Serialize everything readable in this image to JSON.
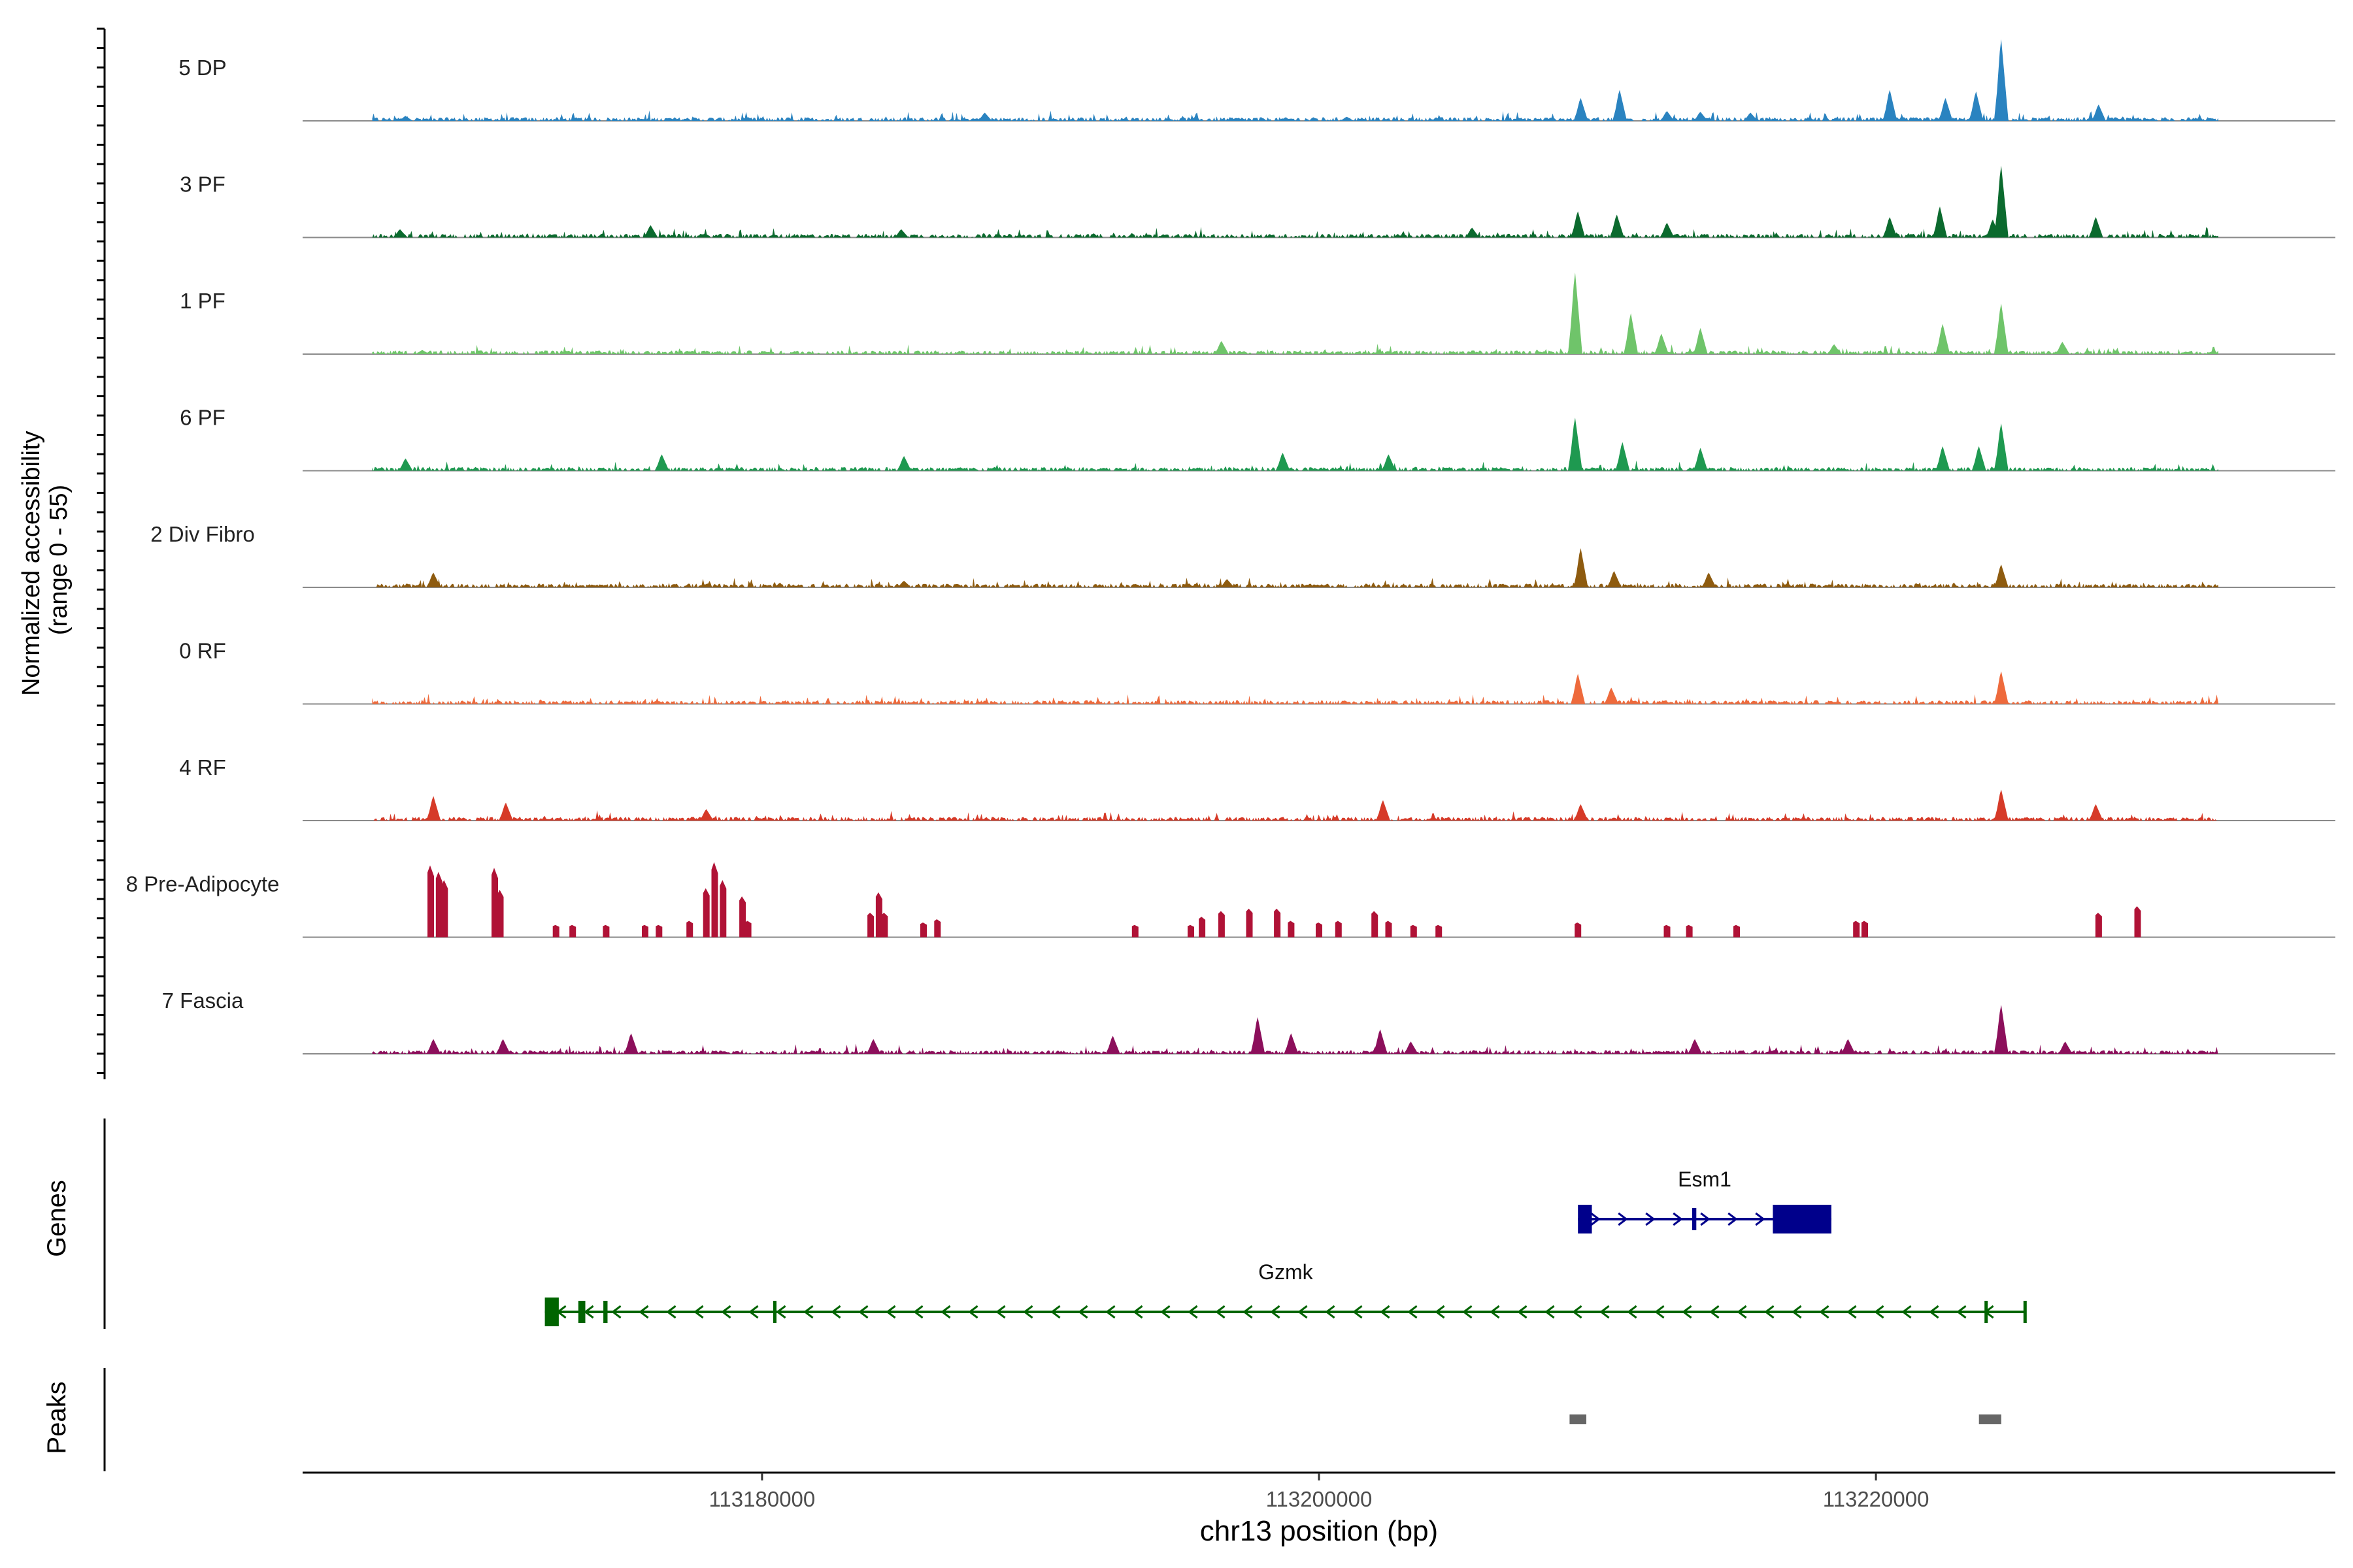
{
  "chart_data": {
    "type": "area",
    "title": "",
    "ylabel_line1": "Normalized accessibility",
    "ylabel_line2": "(range 0 - 55)",
    "xlabel": "chr13 position (bp)",
    "xlim": [
      113163500,
      113236500
    ],
    "ylim": [
      0,
      55
    ],
    "xticks": [
      113180000,
      113200000,
      113220000
    ],
    "xtick_labels": [
      "113180000",
      "113200000",
      "113220000"
    ],
    "tracks": [
      {
        "name": "5 DP",
        "color": "#2a83c0",
        "style": "dense",
        "peaks": [
          [
            113167200,
            0.06
          ],
          [
            113188000,
            0.1
          ],
          [
            113201000,
            0.05
          ],
          [
            113209400,
            0.28
          ],
          [
            113210800,
            0.38
          ],
          [
            113212500,
            0.12
          ],
          [
            113213700,
            0.11
          ],
          [
            113215500,
            0.1
          ],
          [
            113220500,
            0.38
          ],
          [
            113222500,
            0.28
          ],
          [
            113223600,
            0.36
          ],
          [
            113224500,
            1.0
          ],
          [
            113228000,
            0.2
          ]
        ]
      },
      {
        "name": "3 PF",
        "color": "#0b6a2e",
        "style": "dense",
        "peaks": [
          [
            113167000,
            0.1
          ],
          [
            113176000,
            0.15
          ],
          [
            113185000,
            0.1
          ],
          [
            113205500,
            0.12
          ],
          [
            113209300,
            0.32
          ],
          [
            113210700,
            0.28
          ],
          [
            113212500,
            0.18
          ],
          [
            113220500,
            0.25
          ],
          [
            113222300,
            0.38
          ],
          [
            113224200,
            0.22
          ],
          [
            113224500,
            0.88
          ],
          [
            113227900,
            0.25
          ]
        ]
      },
      {
        "name": "1 PF",
        "color": "#6fc46a",
        "style": "dense",
        "peaks": [
          [
            113167800,
            0.05
          ],
          [
            113177500,
            0.04
          ],
          [
            113196500,
            0.16
          ],
          [
            113209200,
            1.0
          ],
          [
            113211200,
            0.5
          ],
          [
            113212300,
            0.25
          ],
          [
            113213700,
            0.32
          ],
          [
            113218500,
            0.12
          ],
          [
            113222400,
            0.37
          ],
          [
            113224500,
            0.62
          ],
          [
            113226700,
            0.15
          ]
        ]
      },
      {
        "name": "6 PF",
        "color": "#1e9950",
        "style": "dense",
        "peaks": [
          [
            113167200,
            0.15
          ],
          [
            113176400,
            0.2
          ],
          [
            113185100,
            0.18
          ],
          [
            113198700,
            0.22
          ],
          [
            113202500,
            0.2
          ],
          [
            113209200,
            0.65
          ],
          [
            113210900,
            0.35
          ],
          [
            113213700,
            0.28
          ],
          [
            113222400,
            0.3
          ],
          [
            113223700,
            0.3
          ],
          [
            113224500,
            0.58
          ]
        ]
      },
      {
        "name": "2 Div Fibro",
        "color": "#8e5b0f",
        "style": "dense",
        "peaks": [
          [
            113168200,
            0.18
          ],
          [
            113185100,
            0.08
          ],
          [
            113196700,
            0.1
          ],
          [
            113209400,
            0.48
          ],
          [
            113210600,
            0.2
          ],
          [
            113214000,
            0.18
          ],
          [
            113224500,
            0.28
          ]
        ]
      },
      {
        "name": "0 RF",
        "color": "#ee6a3c",
        "style": "dense",
        "peaks": [
          [
            113209300,
            0.37
          ],
          [
            113210500,
            0.2
          ],
          [
            113224500,
            0.4
          ]
        ]
      },
      {
        "name": "4 RF",
        "color": "#d63a28",
        "style": "dense",
        "peaks": [
          [
            113168200,
            0.3
          ],
          [
            113170800,
            0.22
          ],
          [
            113178000,
            0.14
          ],
          [
            113202300,
            0.25
          ],
          [
            113209400,
            0.2
          ],
          [
            113224500,
            0.38
          ],
          [
            113227900,
            0.2
          ]
        ]
      },
      {
        "name": "8 Pre-Adipocyte",
        "color": "#b01236",
        "style": "sparse",
        "peaks": [
          [
            113168100,
            0.88
          ],
          [
            113168400,
            0.8
          ],
          [
            113168600,
            0.7
          ],
          [
            113170400,
            0.85
          ],
          [
            113170600,
            0.58
          ],
          [
            113172600,
            0.15
          ],
          [
            113173200,
            0.15
          ],
          [
            113174400,
            0.15
          ],
          [
            113175800,
            0.15
          ],
          [
            113176300,
            0.15
          ],
          [
            113177400,
            0.2
          ],
          [
            113178000,
            0.6
          ],
          [
            113178300,
            0.92
          ],
          [
            113178600,
            0.7
          ],
          [
            113179300,
            0.5
          ],
          [
            113179500,
            0.2
          ],
          [
            113183900,
            0.3
          ],
          [
            113184200,
            0.55
          ],
          [
            113184400,
            0.3
          ],
          [
            113185800,
            0.18
          ],
          [
            113186300,
            0.22
          ],
          [
            113193400,
            0.15
          ],
          [
            113195400,
            0.15
          ],
          [
            113195800,
            0.25
          ],
          [
            113196500,
            0.32
          ],
          [
            113197500,
            0.35
          ],
          [
            113198500,
            0.35
          ],
          [
            113199000,
            0.2
          ],
          [
            113200000,
            0.18
          ],
          [
            113200700,
            0.2
          ],
          [
            113202000,
            0.32
          ],
          [
            113202500,
            0.2
          ],
          [
            113203400,
            0.15
          ],
          [
            113204300,
            0.15
          ],
          [
            113209300,
            0.18
          ],
          [
            113212500,
            0.15
          ],
          [
            113213300,
            0.15
          ],
          [
            113215000,
            0.15
          ],
          [
            113219300,
            0.2
          ],
          [
            113219600,
            0.2
          ],
          [
            113228000,
            0.3
          ],
          [
            113229400,
            0.38
          ]
        ]
      },
      {
        "name": "7 Fascia",
        "color": "#8c0f5b",
        "style": "dense",
        "peaks": [
          [
            113168200,
            0.18
          ],
          [
            113170700,
            0.18
          ],
          [
            113175300,
            0.25
          ],
          [
            113184000,
            0.18
          ],
          [
            113192600,
            0.22
          ],
          [
            113197800,
            0.45
          ],
          [
            113199000,
            0.25
          ],
          [
            113202200,
            0.3
          ],
          [
            113203300,
            0.15
          ],
          [
            113213500,
            0.18
          ],
          [
            113219000,
            0.18
          ],
          [
            113224500,
            0.6
          ],
          [
            113226800,
            0.15
          ]
        ]
      }
    ],
    "genes_label": "Genes",
    "genes": [
      {
        "name": "Esm1",
        "color": "#00008b",
        "strand": "+",
        "start": 113209300,
        "end": 113218400,
        "exons": [
          [
            113209300,
            113209800
          ],
          [
            113213400,
            113213550
          ],
          [
            113216300,
            113218400
          ]
        ]
      },
      {
        "name": "Gzmk",
        "color": "#006400",
        "strand": "-",
        "start": 113172200,
        "end": 113225400,
        "exons": [
          [
            113172200,
            113172700
          ],
          [
            113173400,
            113173650
          ],
          [
            113174300,
            113174450
          ],
          [
            113180400,
            113180500
          ],
          [
            113223900,
            113224000
          ],
          [
            113225300,
            113225400
          ]
        ]
      }
    ],
    "peaks_label": "Peaks",
    "peak_regions": [
      [
        113209000,
        113209600
      ],
      [
        113223700,
        113224500
      ]
    ]
  }
}
